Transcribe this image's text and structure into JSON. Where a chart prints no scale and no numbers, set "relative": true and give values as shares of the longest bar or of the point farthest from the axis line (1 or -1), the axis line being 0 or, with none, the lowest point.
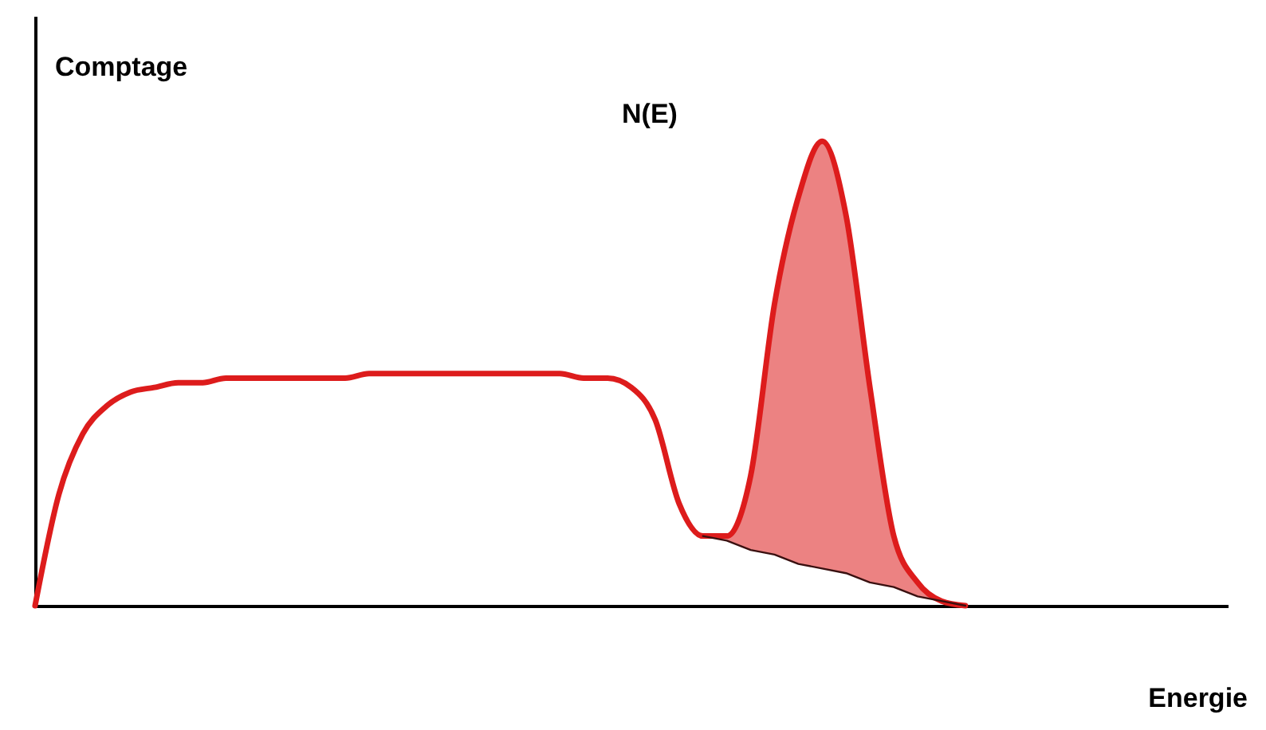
{
  "chart_data": {
    "type": "line",
    "relative": true,
    "xlabel": "Energie",
    "ylabel": "Comptage",
    "annotations": [
      "N(E)"
    ],
    "categories": [
      null,
      null,
      null,
      null,
      null,
      null,
      null,
      null,
      null,
      null,
      null,
      null,
      null,
      null,
      null,
      null,
      null,
      null,
      null,
      null,
      null,
      null,
      null,
      null,
      null,
      null,
      null,
      null,
      null,
      null,
      null,
      null,
      null,
      null,
      null,
      null,
      null,
      null,
      null,
      null,
      null,
      null,
      null,
      null,
      null,
      null,
      null,
      null,
      null,
      null,
      null
    ],
    "series": [
      {
        "color": "#dd1c1c",
        "values": [
          0,
          0.24,
          0.37,
          0.43,
          0.46,
          0.47,
          0.48,
          0.48,
          0.49,
          0.49,
          0.49,
          0.49,
          0.49,
          0.49,
          0.5,
          0.5,
          0.5,
          0.5,
          0.5,
          0.5,
          0.5,
          0.5,
          0.5,
          0.49,
          0.49,
          0.47,
          0.4,
          0.22,
          0.15,
          0.15,
          0.28,
          0.65,
          0.88,
          1,
          0.84,
          0.47,
          0.15,
          0.05,
          0.01,
          0,
          null,
          null,
          null,
          null,
          null,
          null,
          null,
          null,
          null,
          null,
          null
        ],
        "upper": [
          null,
          null,
          null,
          null,
          null,
          null,
          null,
          null,
          null,
          null,
          null,
          null,
          null,
          null,
          null,
          null,
          null,
          null,
          null,
          null,
          null,
          null,
          null,
          null,
          null,
          null,
          null,
          null,
          0.15,
          0.15,
          0.28,
          0.65,
          0.88,
          1,
          0.84,
          0.47,
          0.15,
          0.05,
          0.01,
          0,
          null,
          null,
          null,
          null,
          null,
          null,
          null,
          null,
          null,
          null,
          null
        ],
        "lower": [
          null,
          null,
          null,
          null,
          null,
          null,
          null,
          null,
          null,
          null,
          null,
          null,
          null,
          null,
          null,
          null,
          null,
          null,
          null,
          null,
          null,
          null,
          null,
          null,
          null,
          null,
          null,
          null,
          0.15,
          0.14,
          0.12,
          0.11,
          0.09,
          0.08,
          0.07,
          0.05,
          0.04,
          0.02,
          0.01,
          0,
          null,
          null,
          null,
          null,
          null,
          null,
          null,
          null,
          null,
          null,
          null
        ]
      },
      {
        "color": "#3a1010",
        "values": [
          null,
          null,
          null,
          null,
          null,
          null,
          null,
          null,
          null,
          null,
          null,
          null,
          null,
          null,
          null,
          null,
          null,
          null,
          null,
          null,
          null,
          null,
          null,
          null,
          null,
          null,
          null,
          null,
          0.15,
          0.14,
          0.12,
          0.11,
          0.09,
          0.08,
          0.07,
          0.05,
          0.04,
          0.02,
          0.01,
          0,
          null,
          null,
          null,
          null,
          null,
          null,
          null,
          null,
          null,
          null,
          null
        ]
      }
    ]
  }
}
